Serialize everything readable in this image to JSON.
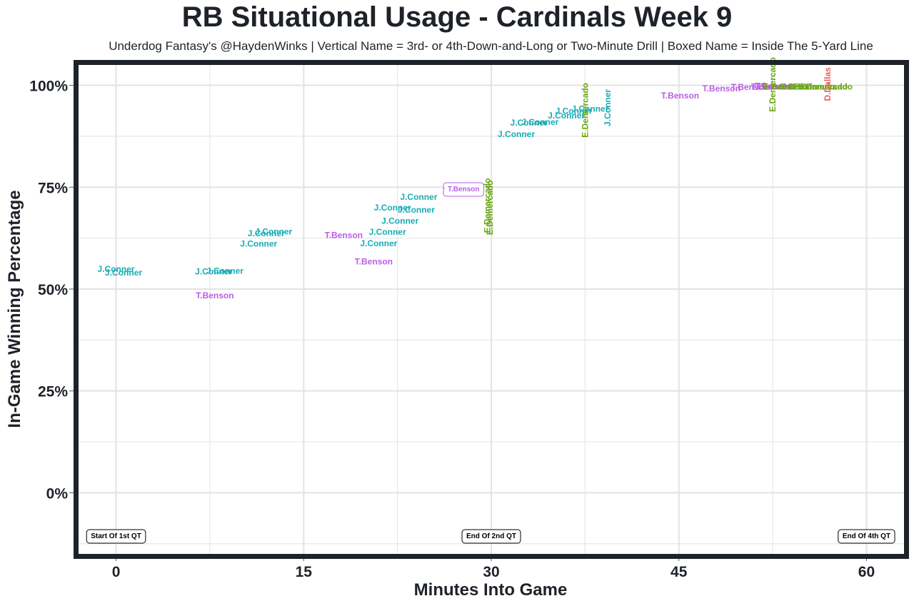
{
  "chart_data": {
    "type": "scatter",
    "title": "RB Situational Usage - Cardinals Week 9",
    "subtitle": "Underdog Fantasy's @HaydenWinks | Vertical Name = 3rd- or 4th-Down-and-Long or Two-Minute Drill | Boxed Name = Inside The 5-Yard Line",
    "xlabel": "Minutes Into Game",
    "ylabel": "In-Game Winning Percentage",
    "xlim": [
      -3,
      63
    ],
    "ylim": [
      -0.15,
      1.05
    ],
    "x_ticks": [
      0,
      15,
      30,
      45,
      60
    ],
    "x_tick_labels": [
      "0",
      "15",
      "30",
      "45",
      "60"
    ],
    "y_ticks": [
      0,
      0.25,
      0.5,
      0.75,
      1.0
    ],
    "y_tick_labels": [
      "0%",
      "25%",
      "50%",
      "75%",
      "100%"
    ],
    "grid": true,
    "colors": {
      "J.Conner": "#16adb5",
      "T.Benson": "#b95ee4",
      "E.Demercado": "#6aa611",
      "D.Dallas": "#ea6060",
      "frame": "#1e2229",
      "grid": "#e3e3e3"
    },
    "markers": [
      {
        "x": 0,
        "label": "Start Of 1st QT"
      },
      {
        "x": 30,
        "label": "End Of 2nd QT"
      },
      {
        "x": 60,
        "label": "End Of 4th QT"
      }
    ],
    "points": [
      {
        "x": 0.0,
        "y": 0.549,
        "label": "J.Conner",
        "vertical": false,
        "boxed": false
      },
      {
        "x": 0.6,
        "y": 0.54,
        "label": "J.Conner",
        "vertical": false,
        "boxed": false
      },
      {
        "x": 7.8,
        "y": 0.543,
        "label": "J.Conner",
        "vertical": false,
        "boxed": false
      },
      {
        "x": 8.7,
        "y": 0.545,
        "label": "J.Conner",
        "vertical": false,
        "boxed": false
      },
      {
        "x": 7.9,
        "y": 0.484,
        "label": "T.Benson",
        "vertical": false,
        "boxed": false
      },
      {
        "x": 11.4,
        "y": 0.611,
        "label": "J.Conner",
        "vertical": false,
        "boxed": false
      },
      {
        "x": 12.0,
        "y": 0.637,
        "label": "J.Conner",
        "vertical": false,
        "boxed": false
      },
      {
        "x": 12.6,
        "y": 0.641,
        "label": "J.Conner",
        "vertical": false,
        "boxed": false
      },
      {
        "x": 18.2,
        "y": 0.632,
        "label": "T.Benson",
        "vertical": false,
        "boxed": false
      },
      {
        "x": 20.6,
        "y": 0.567,
        "label": "T.Benson",
        "vertical": false,
        "boxed": false
      },
      {
        "x": 21.0,
        "y": 0.612,
        "label": "J.Conner",
        "vertical": false,
        "boxed": false
      },
      {
        "x": 21.7,
        "y": 0.64,
        "label": "J.Conner",
        "vertical": false,
        "boxed": false
      },
      {
        "x": 22.7,
        "y": 0.667,
        "label": "J.Conner",
        "vertical": false,
        "boxed": false
      },
      {
        "x": 22.1,
        "y": 0.7,
        "label": "J.Conner",
        "vertical": false,
        "boxed": false
      },
      {
        "x": 24.0,
        "y": 0.694,
        "label": "J.Conner",
        "vertical": false,
        "boxed": false
      },
      {
        "x": 24.2,
        "y": 0.726,
        "label": "J.Conner",
        "vertical": false,
        "boxed": false
      },
      {
        "x": 26.3,
        "y": 0.747,
        "label": "T.Benson",
        "vertical": false,
        "boxed": true
      },
      {
        "x": 29.7,
        "y": 0.705,
        "label": "E.Demercado",
        "vertical": true,
        "boxed": false
      },
      {
        "x": 29.9,
        "y": 0.7,
        "label": "E.Demercado",
        "vertical": true,
        "boxed": false
      },
      {
        "x": 32.0,
        "y": 0.88,
        "label": "J.Conner",
        "vertical": false,
        "boxed": false
      },
      {
        "x": 33.0,
        "y": 0.908,
        "label": "J.Conner",
        "vertical": false,
        "boxed": false
      },
      {
        "x": 33.9,
        "y": 0.91,
        "label": "J.Conner",
        "vertical": false,
        "boxed": false
      },
      {
        "x": 36.0,
        "y": 0.926,
        "label": "J.Conner",
        "vertical": false,
        "boxed": false
      },
      {
        "x": 36.6,
        "y": 0.937,
        "label": "J.Conner",
        "vertical": false,
        "boxed": false
      },
      {
        "x": 37.9,
        "y": 0.942,
        "label": "J.Conner",
        "vertical": false,
        "boxed": false
      },
      {
        "x": 37.5,
        "y": 0.939,
        "label": "E.Demercado",
        "vertical": true,
        "boxed": false
      },
      {
        "x": 39.3,
        "y": 0.945,
        "label": "J.Conner",
        "vertical": true,
        "boxed": false
      },
      {
        "x": 45.1,
        "y": 0.975,
        "label": "T.Benson",
        "vertical": false,
        "boxed": false
      },
      {
        "x": 48.4,
        "y": 0.992,
        "label": "T.Benson",
        "vertical": false,
        "boxed": false
      },
      {
        "x": 50.7,
        "y": 0.996,
        "label": "T.Benson",
        "vertical": false,
        "boxed": false
      },
      {
        "x": 52.3,
        "y": 0.997,
        "label": "T.Benson",
        "vertical": false,
        "boxed": false
      },
      {
        "x": 52.6,
        "y": 0.998,
        "label": "T.Benson",
        "vertical": false,
        "boxed": false
      },
      {
        "x": 52.5,
        "y": 1.002,
        "label": "E.Demercado",
        "vertical": true,
        "boxed": false
      },
      {
        "x": 53.9,
        "y": 0.997,
        "label": "E.Demercado",
        "vertical": false,
        "boxed": false
      },
      {
        "x": 55.3,
        "y": 0.997,
        "label": "E.Demercado",
        "vertical": false,
        "boxed": false
      },
      {
        "x": 56.3,
        "y": 0.997,
        "label": "E.Demercado",
        "vertical": false,
        "boxed": false
      },
      {
        "x": 56.7,
        "y": 0.997,
        "label": "E.Demercado",
        "vertical": false,
        "boxed": false
      },
      {
        "x": 56.9,
        "y": 1.003,
        "label": "D.Dallas",
        "vertical": true,
        "boxed": false
      }
    ]
  }
}
